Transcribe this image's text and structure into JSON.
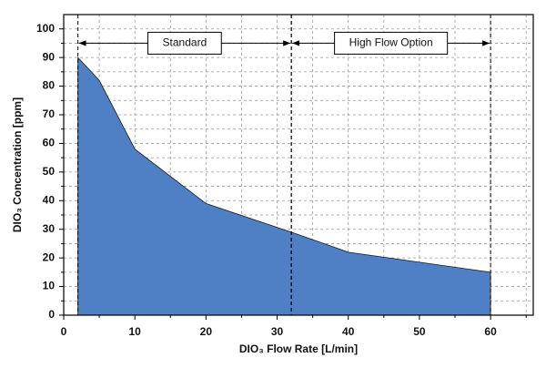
{
  "chart_data": {
    "type": "area",
    "x": [
      2,
      5,
      10,
      20,
      32,
      40,
      60
    ],
    "values": [
      90,
      82,
      58,
      39,
      29,
      22,
      15
    ],
    "color": "#4f7fc4",
    "xlabel": "DIO₃ Flow Rate [L/min]",
    "ylabel": "DIO₃ Concentration [ppm]",
    "xlim": [
      0,
      66
    ],
    "ylim": [
      0,
      105
    ],
    "xticks": [
      0,
      10,
      20,
      30,
      40,
      50,
      60
    ],
    "yticks": [
      0,
      10,
      20,
      30,
      40,
      50,
      60,
      70,
      80,
      90,
      100
    ],
    "xminorticks": [
      5,
      15,
      25,
      35,
      45,
      55,
      65
    ],
    "yminorticks": [
      5,
      15,
      25,
      35,
      45,
      55,
      65,
      75,
      85,
      95
    ],
    "grid": true,
    "regions": [
      {
        "label": "Standard",
        "x": [
          2,
          32
        ]
      },
      {
        "label": "High Flow Option",
        "x": [
          32,
          60
        ]
      }
    ],
    "region_arrow_y": 95
  }
}
